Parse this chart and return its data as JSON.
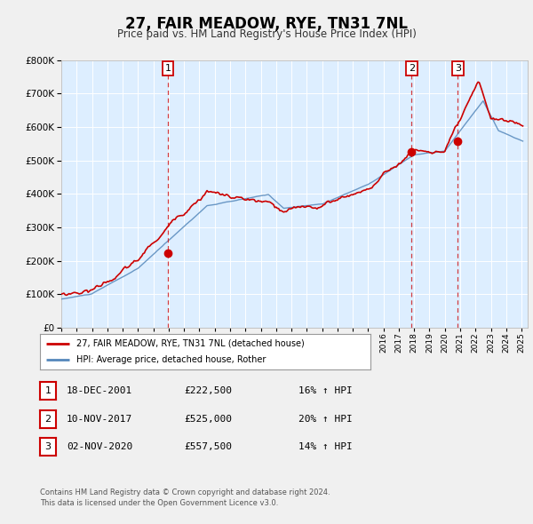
{
  "title": "27, FAIR MEADOW, RYE, TN31 7NL",
  "subtitle": "Price paid vs. HM Land Registry's House Price Index (HPI)",
  "legend_label_red": "27, FAIR MEADOW, RYE, TN31 7NL (detached house)",
  "legend_label_blue": "HPI: Average price, detached house, Rother",
  "transaction_dates": [
    2001.96,
    2017.84,
    2020.84
  ],
  "transaction_prices": [
    222500,
    525000,
    557500
  ],
  "transaction_nums": [
    "1",
    "2",
    "3"
  ],
  "table_rows": [
    {
      "num": "1",
      "date": "18-DEC-2001",
      "price": "£222,500",
      "pct": "16% ↑ HPI"
    },
    {
      "num": "2",
      "date": "10-NOV-2017",
      "price": "£525,000",
      "pct": "20% ↑ HPI"
    },
    {
      "num": "3",
      "date": "02-NOV-2020",
      "price": "£557,500",
      "pct": "14% ↑ HPI"
    }
  ],
  "footer_line1": "Contains HM Land Registry data © Crown copyright and database right 2024.",
  "footer_line2": "This data is licensed under the Open Government Licence v3.0.",
  "red_color": "#cc0000",
  "blue_color": "#5588bb",
  "bg_color": "#ddeeff",
  "fig_bg": "#f0f0f0",
  "ylim": [
    0,
    800000
  ],
  "xlim_start": 1995.0,
  "xlim_end": 2025.4,
  "yticks": [
    0,
    100000,
    200000,
    300000,
    400000,
    500000,
    600000,
    700000,
    800000
  ]
}
